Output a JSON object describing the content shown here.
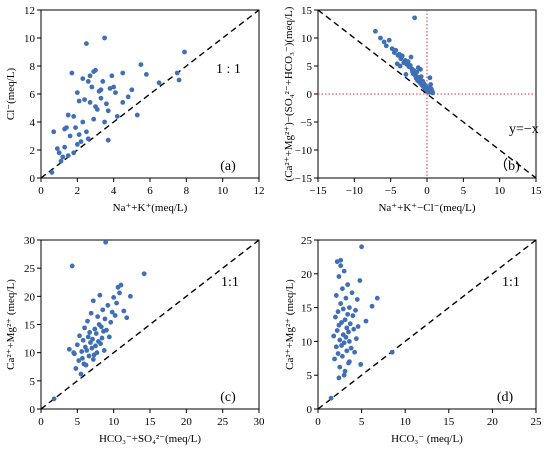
{
  "figure": {
    "panels_count": 4
  },
  "chart_data": [
    {
      "type": "scatter",
      "panel_label": "(a)",
      "xlabel": "Na⁺+K⁺(meq/L)",
      "ylabel": "Cl⁻(meq/L)",
      "xlim": [
        0,
        12
      ],
      "ylim": [
        0,
        12
      ],
      "xticks": [
        0,
        2,
        4,
        6,
        8,
        10,
        12
      ],
      "yticks": [
        0,
        2,
        4,
        6,
        8,
        10,
        12
      ],
      "reference_line": {
        "label": "1 : 1",
        "points": [
          [
            0,
            0
          ],
          [
            12,
            12
          ]
        ]
      },
      "guides": [],
      "point_color": "#3f6fb5",
      "x": [
        0.6,
        0.7,
        0.9,
        1.0,
        1.1,
        1.2,
        1.3,
        1.3,
        1.4,
        1.5,
        1.5,
        1.6,
        1.7,
        1.8,
        1.8,
        1.9,
        2.0,
        2.0,
        2.1,
        2.1,
        2.2,
        2.3,
        2.3,
        2.4,
        2.5,
        2.5,
        2.6,
        2.6,
        2.7,
        2.7,
        2.8,
        2.9,
        2.9,
        3.0,
        3.0,
        3.1,
        3.2,
        3.3,
        3.3,
        3.4,
        3.5,
        3.5,
        3.6,
        3.7,
        3.7,
        3.8,
        3.9,
        4.0,
        4.1,
        4.2,
        4.5,
        4.5,
        4.8,
        5.0,
        5.3,
        5.5,
        5.8,
        6.5,
        7.5,
        7.6,
        7.9
      ],
      "y": [
        0.4,
        3.3,
        2.1,
        1.8,
        1.2,
        1.5,
        3.5,
        2.2,
        3.6,
        1.6,
        4.5,
        3.0,
        7.5,
        4.4,
        1.8,
        3.6,
        2.4,
        6.1,
        5.5,
        3.1,
        2.6,
        4.0,
        7.1,
        5.6,
        3.3,
        9.6,
        6.9,
        2.8,
        5.4,
        7.3,
        6.5,
        4.2,
        7.6,
        5.1,
        7.7,
        4.9,
        6.2,
        6.3,
        5.7,
        6.9,
        10.0,
        4.0,
        5.3,
        4.8,
        2.7,
        6.4,
        7.3,
        6.5,
        6.1,
        4.4,
        5.4,
        7.5,
        5.8,
        6.3,
        4.5,
        8.1,
        7.4,
        6.8,
        7.5,
        7.0,
        9.0
      ]
    },
    {
      "type": "scatter",
      "panel_label": "（b)",
      "xlabel": "Na⁺+K⁺−Cl⁻(meq/L)",
      "ylabel": "(Ca²⁺+Mg²⁺)−(SO₄²⁻+HCO₃⁻)(meq/L)",
      "xlim": [
        -15,
        15
      ],
      "ylim": [
        -15,
        15
      ],
      "xticks": [
        -15,
        -10,
        -5,
        0,
        5,
        10,
        15
      ],
      "yticks": [
        -15,
        -10,
        -5,
        0,
        5,
        10,
        15
      ],
      "reference_line": {
        "label": "y=−x",
        "points": [
          [
            -15,
            15
          ],
          [
            15,
            -15
          ]
        ]
      },
      "guides": [
        {
          "axis": "x",
          "value": 0
        },
        {
          "axis": "y",
          "value": 0
        }
      ],
      "point_color": "#3f6fb5",
      "x": [
        -7.1,
        -6.4,
        -5.9,
        -5.6,
        -5.2,
        -4.8,
        -4.5,
        -4.3,
        -4.0,
        -3.8,
        -3.6,
        -3.4,
        -3.2,
        -3.0,
        -2.8,
        -2.6,
        -2.5,
        -2.3,
        -2.1,
        -2.0,
        -1.9,
        -1.8,
        -1.6,
        -1.5,
        -1.4,
        -1.3,
        -1.2,
        -1.1,
        -1.0,
        -0.9,
        -0.8,
        -0.7,
        -0.6,
        -0.5,
        -0.4,
        -0.3,
        -0.2,
        -0.1,
        0.0,
        0.1,
        0.2,
        0.3,
        0.4,
        0.5,
        0.6,
        0.7,
        0.8,
        -3.7,
        -2.2,
        -1.7,
        -0.9,
        -2.9,
        -4.1,
        -1.2,
        -0.5,
        -1.3
      ],
      "y": [
        11.2,
        10.0,
        9.3,
        8.6,
        9.6,
        8.1,
        7.4,
        7.8,
        6.9,
        7.1,
        6.3,
        6.8,
        5.6,
        6.0,
        5.3,
        5.8,
        4.9,
        5.1,
        4.5,
        4.0,
        3.6,
        4.2,
        3.3,
        2.8,
        3.9,
        2.5,
        3.0,
        2.2,
        2.6,
        1.9,
        3.1,
        1.6,
        2.3,
        1.3,
        1.8,
        1.0,
        1.5,
        0.8,
        0.6,
        0.4,
        1.1,
        0.3,
        2.9,
        1.7,
        0.9,
        0.5,
        0.2,
        5.0,
        6.6,
        13.6,
        4.4,
        3.5,
        5.4,
        4.7,
        2.0,
        2.4
      ]
    },
    {
      "type": "scatter",
      "panel_label": "(c)",
      "xlabel": "HCO₃⁻+SO₄²⁻(meq/L)",
      "ylabel": "Ca²⁺+Mg²⁺ (meq/L)",
      "xlim": [
        0,
        30
      ],
      "ylim": [
        0,
        30
      ],
      "xticks": [
        0,
        5,
        10,
        15,
        20,
        25,
        30
      ],
      "yticks": [
        0,
        5,
        10,
        15,
        20,
        25,
        30
      ],
      "reference_line": {
        "label": "1:1",
        "points": [
          [
            0,
            0
          ],
          [
            30,
            30
          ]
        ]
      },
      "guides": [],
      "point_color": "#3f6fb5",
      "x": [
        1.8,
        3.9,
        4.3,
        4.6,
        4.8,
        5.0,
        5.2,
        5.3,
        5.5,
        5.6,
        5.7,
        5.8,
        5.9,
        6.0,
        6.1,
        6.2,
        6.3,
        6.4,
        6.5,
        6.6,
        6.7,
        6.8,
        6.9,
        7.0,
        7.1,
        7.2,
        7.3,
        7.4,
        7.5,
        7.6,
        7.7,
        7.8,
        7.9,
        8.0,
        8.1,
        8.2,
        8.3,
        8.4,
        8.5,
        8.6,
        8.7,
        8.8,
        9.0,
        9.2,
        9.4,
        9.6,
        9.8,
        10.0,
        10.2,
        10.4,
        10.6,
        10.8,
        11.0,
        11.4,
        11.8,
        12.3,
        14.2,
        4.5,
        7.2,
        8.9
      ],
      "y": [
        1.8,
        10.6,
        25.4,
        9.8,
        7.2,
        11.4,
        8.6,
        13.0,
        6.2,
        10.2,
        9.0,
        12.2,
        8.0,
        14.4,
        11.0,
        7.8,
        10.4,
        15.6,
        12.8,
        9.4,
        13.6,
        11.8,
        17.0,
        10.8,
        12.4,
        19.2,
        9.6,
        14.2,
        11.2,
        13.4,
        10.0,
        16.4,
        12.0,
        15.0,
        20.2,
        11.6,
        14.6,
        12.6,
        17.6,
        13.8,
        10.4,
        16.0,
        14.0,
        18.4,
        12.8,
        15.4,
        17.2,
        19.8,
        16.6,
        18.8,
        21.6,
        20.6,
        22.0,
        17.4,
        16.2,
        20.0,
        24.0,
        10.0,
        8.8,
        29.6
      ]
    },
    {
      "type": "scatter",
      "panel_label": "(d)",
      "xlabel": "HCO₃⁻ (meq/L)",
      "ylabel": "Ca²⁺+Mg²⁺ (meq/L)",
      "xlim": [
        0,
        25
      ],
      "ylim": [
        0,
        25
      ],
      "xticks": [
        0,
        5,
        10,
        15,
        20,
        25
      ],
      "yticks": [
        0,
        5,
        10,
        15,
        20,
        25
      ],
      "reference_line": {
        "label": "1:1",
        "points": [
          [
            0,
            0
          ],
          [
            25,
            25
          ]
        ]
      },
      "guides": [],
      "point_color": "#3f6fb5",
      "x": [
        1.5,
        1.8,
        1.9,
        2.0,
        2.1,
        2.1,
        2.2,
        2.2,
        2.3,
        2.3,
        2.4,
        2.4,
        2.5,
        2.5,
        2.6,
        2.6,
        2.7,
        2.7,
        2.8,
        2.8,
        2.9,
        2.9,
        3.0,
        3.0,
        3.1,
        3.1,
        3.2,
        3.2,
        3.3,
        3.3,
        3.4,
        3.4,
        3.5,
        3.5,
        3.6,
        3.6,
        3.7,
        3.8,
        3.9,
        4.0,
        4.1,
        4.2,
        4.3,
        4.4,
        4.5,
        4.6,
        4.8,
        5.0,
        5.5,
        6.2,
        6.8,
        8.5,
        2.6,
        3.0,
        2.4,
        3.6,
        4.9
      ],
      "y": [
        1.6,
        10.8,
        7.4,
        13.6,
        9.2,
        16.8,
        11.6,
        21.8,
        8.2,
        14.4,
        12.4,
        19.6,
        10.2,
        6.2,
        15.6,
        21.2,
        9.4,
        12.8,
        17.8,
        7.8,
        11.0,
        14.8,
        9.8,
        20.4,
        13.2,
        5.6,
        10.6,
        16.4,
        12.0,
        8.6,
        14.0,
        18.4,
        11.4,
        6.8,
        15.0,
        10.0,
        12.6,
        9.0,
        17.2,
        13.8,
        11.8,
        8.4,
        14.6,
        10.4,
        16.2,
        12.2,
        19.0,
        24.0,
        13.0,
        15.2,
        16.4,
        8.4,
        22.0,
        5.0,
        4.6,
        7.0,
        6.6
      ]
    }
  ]
}
